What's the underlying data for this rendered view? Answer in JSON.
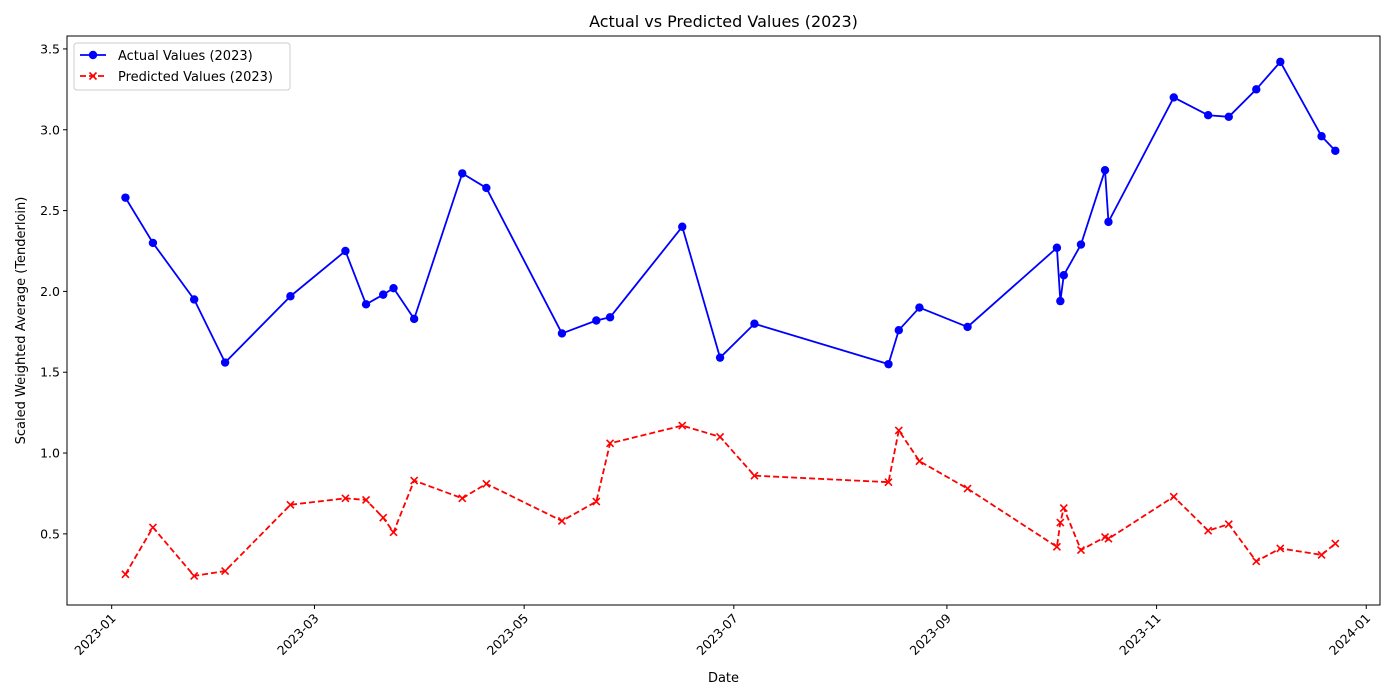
{
  "chart_data": {
    "type": "line",
    "title": "Actual vs Predicted Values (2023)",
    "xlabel": "Date",
    "ylabel": "Scaled Weighted Average (Tenderloin)",
    "x_axis_type": "date",
    "xlim": [
      "2022-12-19",
      "2024-01-05"
    ],
    "ylim": [
      0.06,
      3.58
    ],
    "x_ticks": [
      "2023-01",
      "2023-03",
      "2023-05",
      "2023-07",
      "2023-09",
      "2023-11",
      "2024-01"
    ],
    "y_ticks": [
      0.5,
      1.0,
      1.5,
      2.0,
      2.5,
      3.0,
      3.5
    ],
    "y_tick_labels": [
      "0.5",
      "1.0",
      "1.5",
      "2.0",
      "2.5",
      "3.0",
      "3.5"
    ],
    "grid": false,
    "legend_position": "top-left",
    "series": [
      {
        "name": "Actual Values (2023)",
        "color": "#0000ff",
        "line_style": "solid",
        "marker": "circle",
        "x": [
          "2023-01-05",
          "2023-01-13",
          "2023-01-25",
          "2023-02-03",
          "2023-02-22",
          "2023-03-10",
          "2023-03-16",
          "2023-03-21",
          "2023-03-24",
          "2023-03-30",
          "2023-04-13",
          "2023-04-20",
          "2023-05-12",
          "2023-05-22",
          "2023-05-26",
          "2023-06-16",
          "2023-06-27",
          "2023-07-07",
          "2023-08-15",
          "2023-08-18",
          "2023-08-24",
          "2023-09-07",
          "2023-10-03",
          "2023-10-04",
          "2023-10-05",
          "2023-10-10",
          "2023-10-17",
          "2023-10-18",
          "2023-11-06",
          "2023-11-16",
          "2023-11-22",
          "2023-11-30",
          "2023-12-07",
          "2023-12-19",
          "2023-12-23"
        ],
        "values": [
          2.58,
          2.3,
          1.95,
          1.56,
          1.97,
          2.25,
          1.92,
          1.98,
          2.02,
          1.83,
          2.73,
          2.64,
          1.74,
          1.82,
          1.84,
          2.4,
          1.59,
          1.8,
          1.55,
          1.76,
          1.9,
          1.78,
          2.27,
          1.94,
          2.1,
          2.29,
          2.75,
          2.43,
          3.2,
          3.09,
          3.08,
          3.25,
          3.42,
          2.96,
          2.87
        ]
      },
      {
        "name": "Predicted Values (2023)",
        "color": "#ff0000",
        "line_style": "dashed",
        "marker": "x",
        "x": [
          "2023-01-05",
          "2023-01-13",
          "2023-01-25",
          "2023-02-03",
          "2023-02-22",
          "2023-03-10",
          "2023-03-16",
          "2023-03-21",
          "2023-03-24",
          "2023-03-30",
          "2023-04-13",
          "2023-04-20",
          "2023-05-12",
          "2023-05-22",
          "2023-05-26",
          "2023-06-16",
          "2023-06-27",
          "2023-07-07",
          "2023-08-15",
          "2023-08-18",
          "2023-08-24",
          "2023-09-07",
          "2023-10-03",
          "2023-10-04",
          "2023-10-05",
          "2023-10-10",
          "2023-10-17",
          "2023-10-18",
          "2023-11-06",
          "2023-11-16",
          "2023-11-22",
          "2023-11-30",
          "2023-12-07",
          "2023-12-19",
          "2023-12-23"
        ],
        "values": [
          0.25,
          0.54,
          0.24,
          0.27,
          0.68,
          0.72,
          0.71,
          0.6,
          0.51,
          0.83,
          0.72,
          0.81,
          0.58,
          0.7,
          1.06,
          1.17,
          1.1,
          0.86,
          0.82,
          1.14,
          0.95,
          0.78,
          0.42,
          0.57,
          0.66,
          0.4,
          0.48,
          0.47,
          0.73,
          0.52,
          0.56,
          0.33,
          0.41,
          0.37,
          0.44
        ]
      }
    ]
  }
}
